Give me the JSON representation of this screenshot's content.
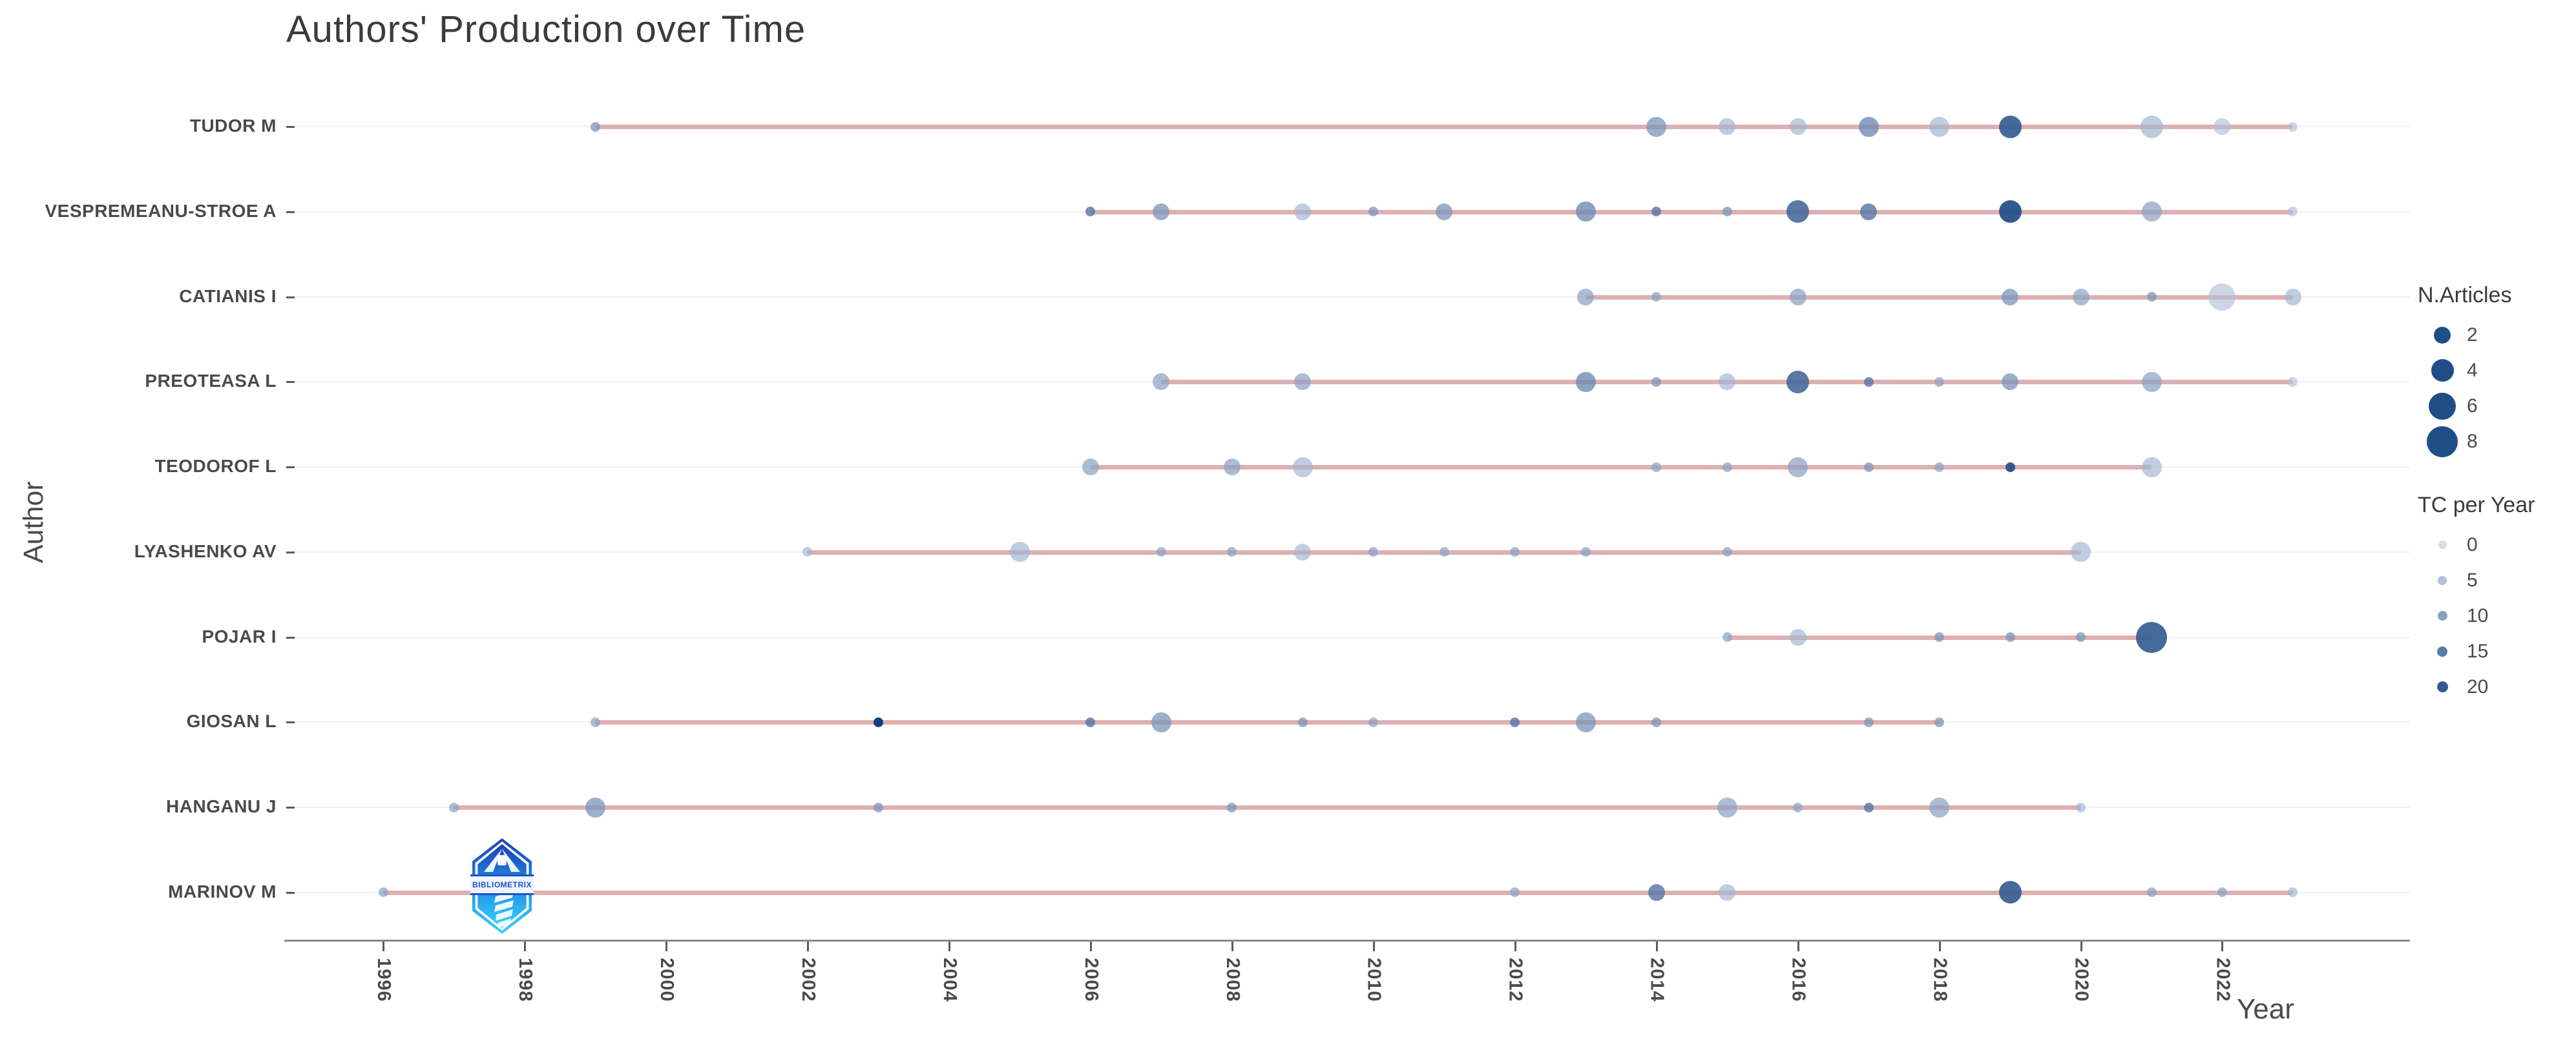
{
  "title": "Authors' Production over Time",
  "axes": {
    "x_label": "Year",
    "y_label": "Author",
    "x_ticks": [
      "1996",
      "1998",
      "2000",
      "2002",
      "2004",
      "2006",
      "2008",
      "2010",
      "2012",
      "2014",
      "2016",
      "2018",
      "2020",
      "2022"
    ]
  },
  "legend": {
    "size_title": "N.Articles",
    "size_items": [
      "2",
      "4",
      "6",
      "8"
    ],
    "size_values": [
      2,
      4,
      6,
      8
    ],
    "color_title": "TC per Year",
    "color_items": [
      "0",
      "5",
      "10",
      "15",
      "20"
    ],
    "color_values": [
      0,
      5,
      10,
      15,
      20
    ]
  },
  "logo": {
    "text": "BIBLIOMETRIX"
  },
  "colors": {
    "timeline": "#d9a8aa",
    "tc_low": "#c6d2e4",
    "tc_high": "#0e3c7c",
    "legend_dot": "#1f4e87",
    "axis_line": "#898989",
    "grid_line": "#f1f1f1",
    "text": "#4a4a4a",
    "title_text": "#3b3b3b"
  },
  "chart_data": {
    "type": "scatter",
    "title": "Authors' Production over Time",
    "xlabel": "Year",
    "ylabel": "Author",
    "x_range": [
      1995,
      2024
    ],
    "x_ticks": [
      1996,
      1998,
      2000,
      2002,
      2004,
      2006,
      2008,
      2010,
      2012,
      2014,
      2016,
      2018,
      2020,
      2022
    ],
    "size_legend": {
      "title": "N.Articles",
      "values": [
        2,
        4,
        6,
        8
      ]
    },
    "color_legend": {
      "title": "TC per Year",
      "values": [
        0,
        5,
        10,
        15,
        20
      ]
    },
    "series": [
      {
        "author": "TUDOR M",
        "line_start": 1999,
        "line_end": 2023,
        "points": [
          {
            "year": 1999,
            "n_articles": 1,
            "tc_per_year": 10
          },
          {
            "year": 2014,
            "n_articles": 3,
            "tc_per_year": 10
          },
          {
            "year": 2015,
            "n_articles": 2,
            "tc_per_year": 5
          },
          {
            "year": 2016,
            "n_articles": 2,
            "tc_per_year": 5
          },
          {
            "year": 2017,
            "n_articles": 3,
            "tc_per_year": 12
          },
          {
            "year": 2018,
            "n_articles": 3,
            "tc_per_year": 5
          },
          {
            "year": 2019,
            "n_articles": 4,
            "tc_per_year": 20
          },
          {
            "year": 2021,
            "n_articles": 4,
            "tc_per_year": 5
          },
          {
            "year": 2022,
            "n_articles": 2,
            "tc_per_year": 3
          },
          {
            "year": 2023,
            "n_articles": 1,
            "tc_per_year": 3
          }
        ]
      },
      {
        "author": "VESPREMEANU-STROE A",
        "line_start": 2006,
        "line_end": 2023,
        "points": [
          {
            "year": 2006,
            "n_articles": 1,
            "tc_per_year": 15
          },
          {
            "year": 2007,
            "n_articles": 2,
            "tc_per_year": 10
          },
          {
            "year": 2009,
            "n_articles": 2,
            "tc_per_year": 5
          },
          {
            "year": 2010,
            "n_articles": 1,
            "tc_per_year": 10
          },
          {
            "year": 2011,
            "n_articles": 2,
            "tc_per_year": 10
          },
          {
            "year": 2013,
            "n_articles": 3,
            "tc_per_year": 12
          },
          {
            "year": 2014,
            "n_articles": 1,
            "tc_per_year": 15
          },
          {
            "year": 2015,
            "n_articles": 1,
            "tc_per_year": 10
          },
          {
            "year": 2016,
            "n_articles": 4,
            "tc_per_year": 18
          },
          {
            "year": 2017,
            "n_articles": 2,
            "tc_per_year": 15
          },
          {
            "year": 2019,
            "n_articles": 4,
            "tc_per_year": 22
          },
          {
            "year": 2021,
            "n_articles": 3,
            "tc_per_year": 8
          },
          {
            "year": 2023,
            "n_articles": 1,
            "tc_per_year": 3
          }
        ]
      },
      {
        "author": "CATIANIS I",
        "line_start": 2013,
        "line_end": 2023,
        "points": [
          {
            "year": 2013,
            "n_articles": 2,
            "tc_per_year": 8
          },
          {
            "year": 2014,
            "n_articles": 1,
            "tc_per_year": 8
          },
          {
            "year": 2016,
            "n_articles": 2,
            "tc_per_year": 8
          },
          {
            "year": 2019,
            "n_articles": 2,
            "tc_per_year": 10
          },
          {
            "year": 2020,
            "n_articles": 2,
            "tc_per_year": 8
          },
          {
            "year": 2021,
            "n_articles": 1,
            "tc_per_year": 10
          },
          {
            "year": 2022,
            "n_articles": 6,
            "tc_per_year": 3
          },
          {
            "year": 2023,
            "n_articles": 2,
            "tc_per_year": 5
          }
        ]
      },
      {
        "author": "PREOTEASA L",
        "line_start": 2007,
        "line_end": 2023,
        "points": [
          {
            "year": 2007,
            "n_articles": 2,
            "tc_per_year": 8
          },
          {
            "year": 2009,
            "n_articles": 2,
            "tc_per_year": 8
          },
          {
            "year": 2013,
            "n_articles": 3,
            "tc_per_year": 12
          },
          {
            "year": 2014,
            "n_articles": 1,
            "tc_per_year": 10
          },
          {
            "year": 2015,
            "n_articles": 2,
            "tc_per_year": 5
          },
          {
            "year": 2016,
            "n_articles": 4,
            "tc_per_year": 18
          },
          {
            "year": 2017,
            "n_articles": 1,
            "tc_per_year": 15
          },
          {
            "year": 2018,
            "n_articles": 1,
            "tc_per_year": 8
          },
          {
            "year": 2019,
            "n_articles": 2,
            "tc_per_year": 10
          },
          {
            "year": 2021,
            "n_articles": 3,
            "tc_per_year": 8
          },
          {
            "year": 2023,
            "n_articles": 1,
            "tc_per_year": 3
          }
        ]
      },
      {
        "author": "TEODOROF L",
        "line_start": 2006,
        "line_end": 2021,
        "points": [
          {
            "year": 2006,
            "n_articles": 2,
            "tc_per_year": 8
          },
          {
            "year": 2008,
            "n_articles": 2,
            "tc_per_year": 8
          },
          {
            "year": 2009,
            "n_articles": 3,
            "tc_per_year": 5
          },
          {
            "year": 2014,
            "n_articles": 1,
            "tc_per_year": 8
          },
          {
            "year": 2015,
            "n_articles": 1,
            "tc_per_year": 8
          },
          {
            "year": 2016,
            "n_articles": 3,
            "tc_per_year": 8
          },
          {
            "year": 2017,
            "n_articles": 1,
            "tc_per_year": 10
          },
          {
            "year": 2018,
            "n_articles": 1,
            "tc_per_year": 8
          },
          {
            "year": 2019,
            "n_articles": 1,
            "tc_per_year": 22
          },
          {
            "year": 2021,
            "n_articles": 3,
            "tc_per_year": 5
          }
        ]
      },
      {
        "author": "LYASHENKO AV",
        "line_start": 2002,
        "line_end": 2020,
        "points": [
          {
            "year": 2002,
            "n_articles": 1,
            "tc_per_year": 5
          },
          {
            "year": 2005,
            "n_articles": 3,
            "tc_per_year": 5
          },
          {
            "year": 2007,
            "n_articles": 1,
            "tc_per_year": 8
          },
          {
            "year": 2008,
            "n_articles": 1,
            "tc_per_year": 8
          },
          {
            "year": 2009,
            "n_articles": 2,
            "tc_per_year": 5
          },
          {
            "year": 2010,
            "n_articles": 1,
            "tc_per_year": 8
          },
          {
            "year": 2011,
            "n_articles": 1,
            "tc_per_year": 8
          },
          {
            "year": 2012,
            "n_articles": 1,
            "tc_per_year": 8
          },
          {
            "year": 2013,
            "n_articles": 1,
            "tc_per_year": 8
          },
          {
            "year": 2015,
            "n_articles": 1,
            "tc_per_year": 8
          },
          {
            "year": 2020,
            "n_articles": 3,
            "tc_per_year": 5
          }
        ]
      },
      {
        "author": "POJAR I",
        "line_start": 2015,
        "line_end": 2021,
        "points": [
          {
            "year": 2015,
            "n_articles": 1,
            "tc_per_year": 8
          },
          {
            "year": 2016,
            "n_articles": 2,
            "tc_per_year": 5
          },
          {
            "year": 2018,
            "n_articles": 1,
            "tc_per_year": 10
          },
          {
            "year": 2019,
            "n_articles": 1,
            "tc_per_year": 10
          },
          {
            "year": 2020,
            "n_articles": 1,
            "tc_per_year": 10
          },
          {
            "year": 2021,
            "n_articles": 8,
            "tc_per_year": 20
          }
        ]
      },
      {
        "author": "GIOSAN L",
        "line_start": 1999,
        "line_end": 2018,
        "points": [
          {
            "year": 1999,
            "n_articles": 1,
            "tc_per_year": 8
          },
          {
            "year": 2003,
            "n_articles": 1,
            "tc_per_year": 25
          },
          {
            "year": 2006,
            "n_articles": 1,
            "tc_per_year": 15
          },
          {
            "year": 2007,
            "n_articles": 3,
            "tc_per_year": 10
          },
          {
            "year": 2009,
            "n_articles": 1,
            "tc_per_year": 10
          },
          {
            "year": 2010,
            "n_articles": 1,
            "tc_per_year": 8
          },
          {
            "year": 2012,
            "n_articles": 1,
            "tc_per_year": 15
          },
          {
            "year": 2013,
            "n_articles": 3,
            "tc_per_year": 10
          },
          {
            "year": 2014,
            "n_articles": 1,
            "tc_per_year": 10
          },
          {
            "year": 2017,
            "n_articles": 1,
            "tc_per_year": 10
          },
          {
            "year": 2018,
            "n_articles": 1,
            "tc_per_year": 10
          }
        ]
      },
      {
        "author": "HANGANU J",
        "line_start": 1997,
        "line_end": 2020,
        "points": [
          {
            "year": 1997,
            "n_articles": 1,
            "tc_per_year": 8
          },
          {
            "year": 1999,
            "n_articles": 3,
            "tc_per_year": 10
          },
          {
            "year": 2003,
            "n_articles": 1,
            "tc_per_year": 10
          },
          {
            "year": 2008,
            "n_articles": 1,
            "tc_per_year": 10
          },
          {
            "year": 2015,
            "n_articles": 3,
            "tc_per_year": 8
          },
          {
            "year": 2016,
            "n_articles": 1,
            "tc_per_year": 8
          },
          {
            "year": 2017,
            "n_articles": 1,
            "tc_per_year": 15
          },
          {
            "year": 2018,
            "n_articles": 3,
            "tc_per_year": 8
          },
          {
            "year": 2020,
            "n_articles": 1,
            "tc_per_year": 5
          }
        ]
      },
      {
        "author": "MARINOV M",
        "line_start": 1996,
        "line_end": 2023,
        "points": [
          {
            "year": 1996,
            "n_articles": 1,
            "tc_per_year": 8
          },
          {
            "year": 2012,
            "n_articles": 1,
            "tc_per_year": 8
          },
          {
            "year": 2014,
            "n_articles": 2,
            "tc_per_year": 15
          },
          {
            "year": 2015,
            "n_articles": 2,
            "tc_per_year": 5
          },
          {
            "year": 2019,
            "n_articles": 4,
            "tc_per_year": 20
          },
          {
            "year": 2021,
            "n_articles": 1,
            "tc_per_year": 8
          },
          {
            "year": 2022,
            "n_articles": 1,
            "tc_per_year": 8
          },
          {
            "year": 2023,
            "n_articles": 1,
            "tc_per_year": 5
          }
        ]
      }
    ]
  }
}
